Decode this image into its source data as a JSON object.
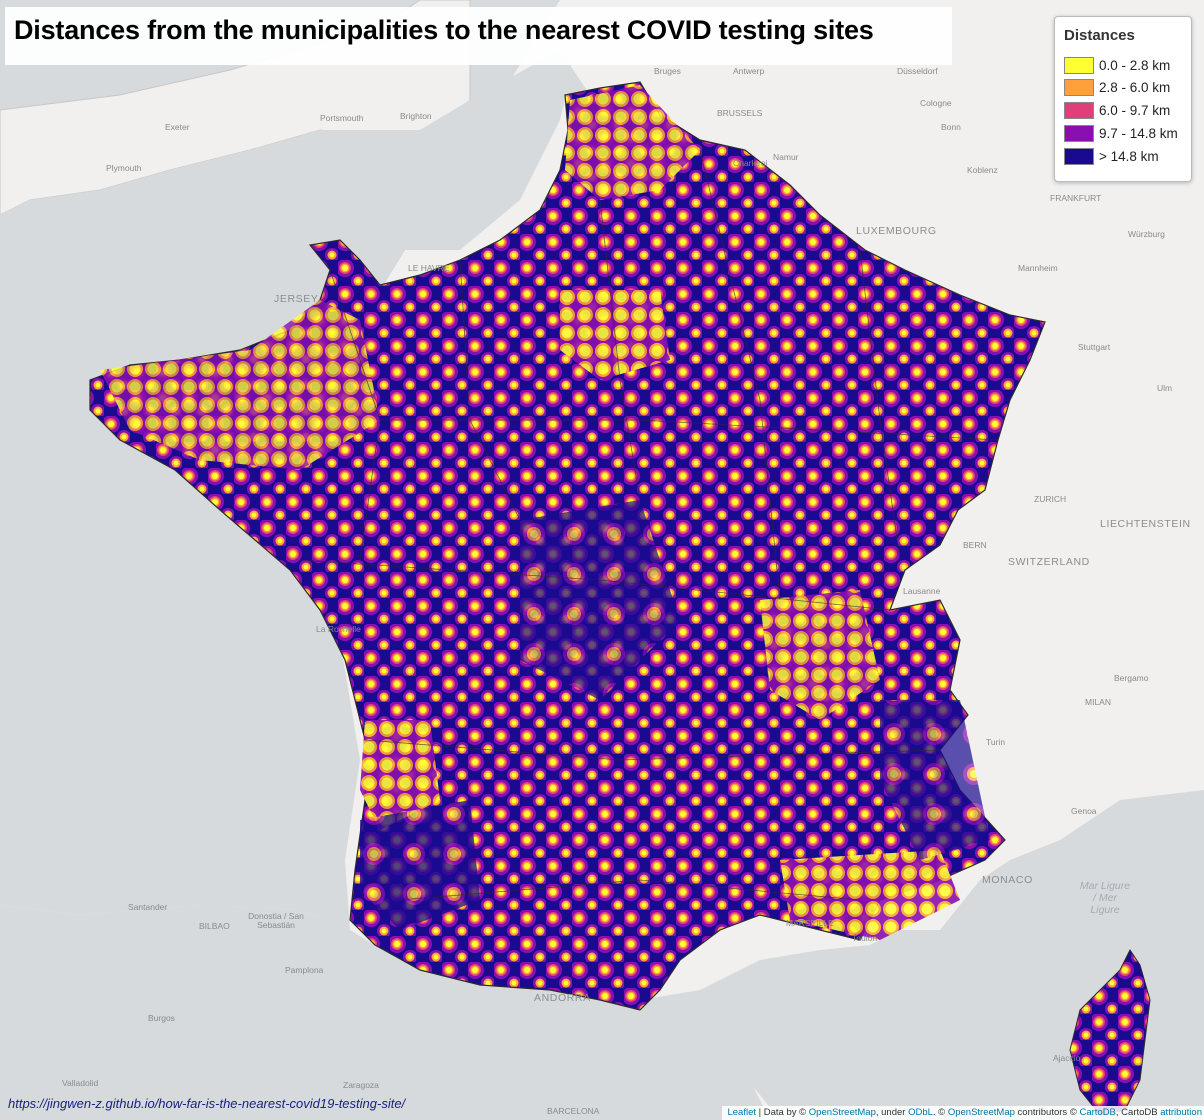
{
  "title": "Distances from the municipalities to the nearest COVID testing sites",
  "legend": {
    "title": "Distances",
    "items": [
      {
        "label": "0.0 - 2.8 km",
        "color": "#ffff33"
      },
      {
        "label": "2.8 - 6.0 km",
        "color": "#ffa03a"
      },
      {
        "label": "6.0 - 9.7 km",
        "color": "#e0407a"
      },
      {
        "label": "9.7 - 14.8 km",
        "color": "#8a0fb0"
      },
      {
        "label": "> 14.8 km",
        "color": "#1a0a90"
      }
    ]
  },
  "cities": [
    "Bruges",
    "Antwerp",
    "Düsseldorf",
    "Portsmouth",
    "Brighton",
    "BRUSSELS",
    "Cologne",
    "Exeter",
    "Bonn",
    "Namur",
    "Plymouth",
    "Charleroi",
    "Koblenz",
    "FRANKFURT",
    "Würzburg",
    "Mannheim",
    "LE HAVRE",
    "Stuttgart",
    "Ulm",
    "ZURICH",
    "BERN",
    "Bergamo",
    "MILAN",
    "Turin",
    "Genoa",
    "Santander",
    "Donostia / San Sebastián",
    "BILBAO",
    "Pamplona",
    "Burgos",
    "Valladolid",
    "Zaragoza",
    "BARCELONA",
    "ANDORRA",
    "MARSEILLE",
    "Toulon",
    "Ajaccio",
    "La Rochelle",
    "Lausanne",
    "MONACO"
  ],
  "regions": [
    "JERSEY",
    "LUXEMBOURG",
    "LIECHTENSTEIN",
    "SWITZERLAND"
  ],
  "sea_labels": [
    "Mar Ligure / Mer Ligure"
  ],
  "source_url": "https://jingwen-z.github.io/how-far-is-the-nearest-covid19-testing-site/",
  "attribution": {
    "leaflet": "Leaflet",
    "data_by": "| Data by ©",
    "osm": "OpenStreetMap",
    "under": ", under",
    "odbl": "ODbL",
    "sep": ". ©",
    "osm2": "OpenStreetMap",
    "contrib": "contributors ©",
    "cartodb": "CartoDB",
    "cartodb_attr": ", CartoDB",
    "attribution": "attribution"
  },
  "colors": {
    "sea": "#d6dadd",
    "land": "#f1f0ef",
    "border": "#2b2b2b"
  }
}
